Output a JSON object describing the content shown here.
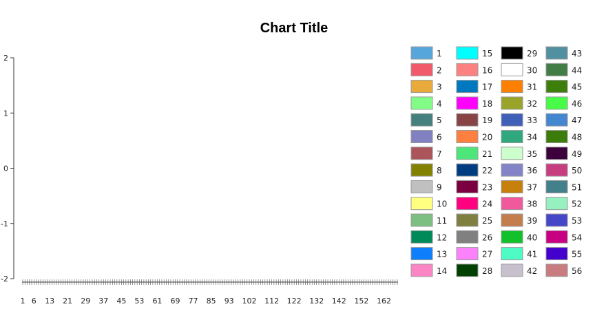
{
  "chart_data": {
    "type": "line",
    "title": "Chart Title",
    "xlabel": "",
    "ylabel": "",
    "ylim": [
      -2,
      2
    ],
    "y_ticks": [
      "-2",
      "-1",
      "0",
      "1",
      "2"
    ],
    "x_count": 168,
    "x_tick_labels": [
      "1",
      "6",
      "13",
      "21",
      "29",
      "37",
      "45",
      "53",
      "61",
      "69",
      "77",
      "85",
      "93",
      "102",
      "112",
      "122",
      "132",
      "142",
      "152",
      "162"
    ],
    "grid": false,
    "legend_position": "right",
    "series": [
      {
        "name": "1",
        "color": "#56a6dc",
        "values": []
      },
      {
        "name": "2",
        "color": "#f15a6b",
        "values": []
      },
      {
        "name": "3",
        "color": "#e9aa3c",
        "values": []
      },
      {
        "name": "4",
        "color": "#82fc86",
        "values": []
      },
      {
        "name": "5",
        "color": "#46807e",
        "values": []
      },
      {
        "name": "6",
        "color": "#8181c2",
        "values": []
      },
      {
        "name": "7",
        "color": "#ab5459",
        "values": []
      },
      {
        "name": "8",
        "color": "#828200",
        "values": []
      },
      {
        "name": "9",
        "color": "#c0c0c0",
        "values": []
      },
      {
        "name": "10",
        "color": "#ffff80",
        "values": []
      },
      {
        "name": "11",
        "color": "#7dbf83",
        "values": []
      },
      {
        "name": "12",
        "color": "#008a5a",
        "values": []
      },
      {
        "name": "13",
        "color": "#0d7ffd",
        "values": []
      },
      {
        "name": "14",
        "color": "#fc86c4",
        "values": []
      },
      {
        "name": "15",
        "color": "#00ffff",
        "values": []
      },
      {
        "name": "16",
        "color": "#fc8282",
        "values": []
      },
      {
        "name": "17",
        "color": "#0078c0",
        "values": []
      },
      {
        "name": "18",
        "color": "#ff00ff",
        "values": []
      },
      {
        "name": "19",
        "color": "#884444",
        "values": []
      },
      {
        "name": "20",
        "color": "#ff7f40",
        "values": []
      },
      {
        "name": "21",
        "color": "#4ce679",
        "values": []
      },
      {
        "name": "22",
        "color": "#003c80",
        "values": []
      },
      {
        "name": "23",
        "color": "#7a0040",
        "values": []
      },
      {
        "name": "24",
        "color": "#ff0080",
        "values": []
      },
      {
        "name": "25",
        "color": "#7f7f40",
        "values": []
      },
      {
        "name": "26",
        "color": "#808080",
        "values": []
      },
      {
        "name": "27",
        "color": "#fc82fc",
        "values": []
      },
      {
        "name": "28",
        "color": "#004000",
        "values": []
      },
      {
        "name": "29",
        "color": "#000000",
        "values": []
      },
      {
        "name": "30",
        "color": "#ffffff",
        "values": []
      },
      {
        "name": "31",
        "color": "#ff8000",
        "values": []
      },
      {
        "name": "32",
        "color": "#9aa42a",
        "values": []
      },
      {
        "name": "33",
        "color": "#3f5fb8",
        "values": []
      },
      {
        "name": "34",
        "color": "#2ea87c",
        "values": []
      },
      {
        "name": "35",
        "color": "#ccffcc",
        "values": []
      },
      {
        "name": "36",
        "color": "#8383c8",
        "values": []
      },
      {
        "name": "37",
        "color": "#c8800c",
        "values": []
      },
      {
        "name": "38",
        "color": "#f05a9c",
        "values": []
      },
      {
        "name": "39",
        "color": "#c47e4e",
        "values": []
      },
      {
        "name": "40",
        "color": "#12c12a",
        "values": []
      },
      {
        "name": "41",
        "color": "#4cfcc4",
        "values": []
      },
      {
        "name": "42",
        "color": "#c8c0cc",
        "values": []
      },
      {
        "name": "43",
        "color": "#5090a0",
        "values": []
      },
      {
        "name": "44",
        "color": "#437d46",
        "values": []
      },
      {
        "name": "45",
        "color": "#3e7e0a",
        "values": []
      },
      {
        "name": "46",
        "color": "#46fc46",
        "values": []
      },
      {
        "name": "47",
        "color": "#4486d0",
        "values": []
      },
      {
        "name": "48",
        "color": "#3c7c0a",
        "values": []
      },
      {
        "name": "49",
        "color": "#3c003c",
        "values": []
      },
      {
        "name": "50",
        "color": "#c83c80",
        "values": []
      },
      {
        "name": "51",
        "color": "#44808c",
        "values": []
      },
      {
        "name": "52",
        "color": "#96f0c0",
        "values": []
      },
      {
        "name": "53",
        "color": "#4646c8",
        "values": []
      },
      {
        "name": "54",
        "color": "#c80082",
        "values": []
      },
      {
        "name": "55",
        "color": "#4400cc",
        "values": []
      },
      {
        "name": "56",
        "color": "#c87c80",
        "values": []
      }
    ]
  }
}
